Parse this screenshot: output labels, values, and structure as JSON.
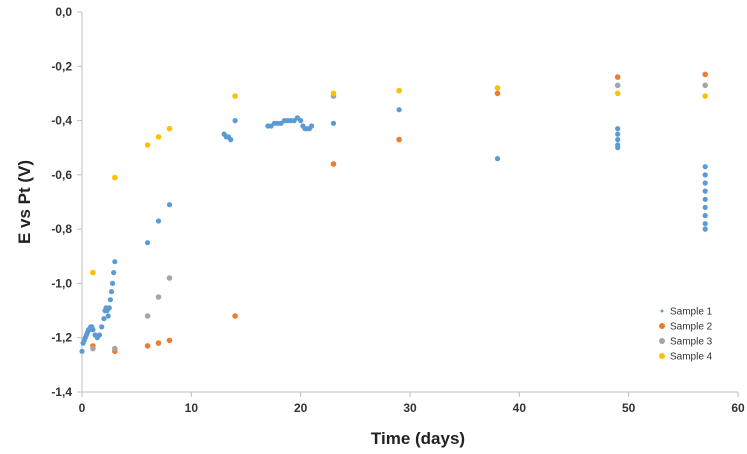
{
  "chart_data": {
    "type": "scatter",
    "title": "",
    "xlabel": "Time (days)",
    "ylabel": "E vs Pt (V)",
    "xlim": [
      0,
      60
    ],
    "ylim": [
      -1.4,
      0.0
    ],
    "x_ticks": [
      0,
      10,
      20,
      30,
      40,
      50,
      60
    ],
    "x_tick_labels": [
      "0",
      "10",
      "20",
      "30",
      "40",
      "50",
      "60"
    ],
    "y_ticks": [
      0.0,
      -0.2,
      -0.4,
      -0.6,
      -0.8,
      -1.0,
      -1.2,
      -1.4
    ],
    "y_tick_labels": [
      "0,0",
      "-0,2",
      "-0,4",
      "-0,6",
      "-0,8",
      "-1,0",
      "-1,2",
      "-1,4"
    ],
    "grid": false,
    "legend_position": "bottom-right",
    "series": [
      {
        "name": "Sample 1",
        "color": "#5b9bd5",
        "style": "dense-points",
        "points": [
          [
            0,
            -1.25
          ],
          [
            0.1,
            -1.22
          ],
          [
            0.2,
            -1.21
          ],
          [
            0.3,
            -1.2
          ],
          [
            0.4,
            -1.19
          ],
          [
            0.5,
            -1.18
          ],
          [
            0.6,
            -1.17
          ],
          [
            0.7,
            -1.17
          ],
          [
            0.8,
            -1.16
          ],
          [
            0.9,
            -1.16
          ],
          [
            1.0,
            -1.17
          ],
          [
            1.2,
            -1.19
          ],
          [
            1.4,
            -1.2
          ],
          [
            1.6,
            -1.19
          ],
          [
            1.8,
            -1.16
          ],
          [
            2.0,
            -1.13
          ],
          [
            2.1,
            -1.1
          ],
          [
            2.2,
            -1.09
          ],
          [
            2.3,
            -1.1
          ],
          [
            2.4,
            -1.12
          ],
          [
            2.5,
            -1.09
          ],
          [
            2.6,
            -1.06
          ],
          [
            2.7,
            -1.03
          ],
          [
            2.8,
            -1.0
          ],
          [
            2.9,
            -0.96
          ],
          [
            3.0,
            -0.92
          ],
          [
            6.0,
            -0.85
          ],
          [
            7.0,
            -0.77
          ],
          [
            8.0,
            -0.71
          ],
          [
            13.0,
            -0.45
          ],
          [
            13.2,
            -0.46
          ],
          [
            13.4,
            -0.46
          ],
          [
            13.6,
            -0.47
          ],
          [
            14.0,
            -0.4
          ],
          [
            17.0,
            -0.42
          ],
          [
            17.3,
            -0.42
          ],
          [
            17.6,
            -0.41
          ],
          [
            17.9,
            -0.41
          ],
          [
            18.2,
            -0.41
          ],
          [
            18.5,
            -0.4
          ],
          [
            18.8,
            -0.4
          ],
          [
            19.1,
            -0.4
          ],
          [
            19.4,
            -0.4
          ],
          [
            19.7,
            -0.39
          ],
          [
            20.0,
            -0.4
          ],
          [
            20.2,
            -0.42
          ],
          [
            20.4,
            -0.43
          ],
          [
            20.6,
            -0.43
          ],
          [
            20.8,
            -0.43
          ],
          [
            21.0,
            -0.42
          ],
          [
            23.0,
            -0.41
          ],
          [
            29.0,
            -0.36
          ],
          [
            38.0,
            -0.54
          ],
          [
            49.0,
            -0.43
          ],
          [
            49.0,
            -0.45
          ],
          [
            49.0,
            -0.47
          ],
          [
            49.0,
            -0.49
          ],
          [
            49.0,
            -0.5
          ],
          [
            57.0,
            -0.57
          ],
          [
            57.0,
            -0.6
          ],
          [
            57.0,
            -0.63
          ],
          [
            57.0,
            -0.66
          ],
          [
            57.0,
            -0.69
          ],
          [
            57.0,
            -0.72
          ],
          [
            57.0,
            -0.75
          ],
          [
            57.0,
            -0.78
          ],
          [
            57.0,
            -0.8
          ]
        ]
      },
      {
        "name": "Sample 2",
        "color": "#ed7d31",
        "style": "points",
        "points": [
          [
            1,
            -1.23
          ],
          [
            3,
            -1.25
          ],
          [
            6,
            -1.23
          ],
          [
            7,
            -1.22
          ],
          [
            8,
            -1.21
          ],
          [
            14,
            -1.12
          ],
          [
            23,
            -0.56
          ],
          [
            29,
            -0.47
          ],
          [
            38,
            -0.3
          ],
          [
            49,
            -0.24
          ],
          [
            57,
            -0.23
          ]
        ]
      },
      {
        "name": "Sample 3",
        "color": "#a5a5a5",
        "style": "points",
        "points": [
          [
            1,
            -1.24
          ],
          [
            3,
            -1.24
          ],
          [
            6,
            -1.12
          ],
          [
            7,
            -1.05
          ],
          [
            8,
            -0.98
          ],
          [
            23,
            -0.31
          ],
          [
            29,
            -0.29
          ],
          [
            38,
            -0.28
          ],
          [
            49,
            -0.27
          ],
          [
            57,
            -0.27
          ]
        ]
      },
      {
        "name": "Sample 4",
        "color": "#ffc000",
        "style": "points",
        "points": [
          [
            1,
            -0.96
          ],
          [
            3,
            -0.61
          ],
          [
            6,
            -0.49
          ],
          [
            7,
            -0.46
          ],
          [
            8,
            -0.43
          ],
          [
            14,
            -0.31
          ],
          [
            23,
            -0.3
          ],
          [
            29,
            -0.29
          ],
          [
            38,
            -0.28
          ],
          [
            49,
            -0.3
          ],
          [
            57,
            -0.31
          ]
        ]
      }
    ]
  }
}
